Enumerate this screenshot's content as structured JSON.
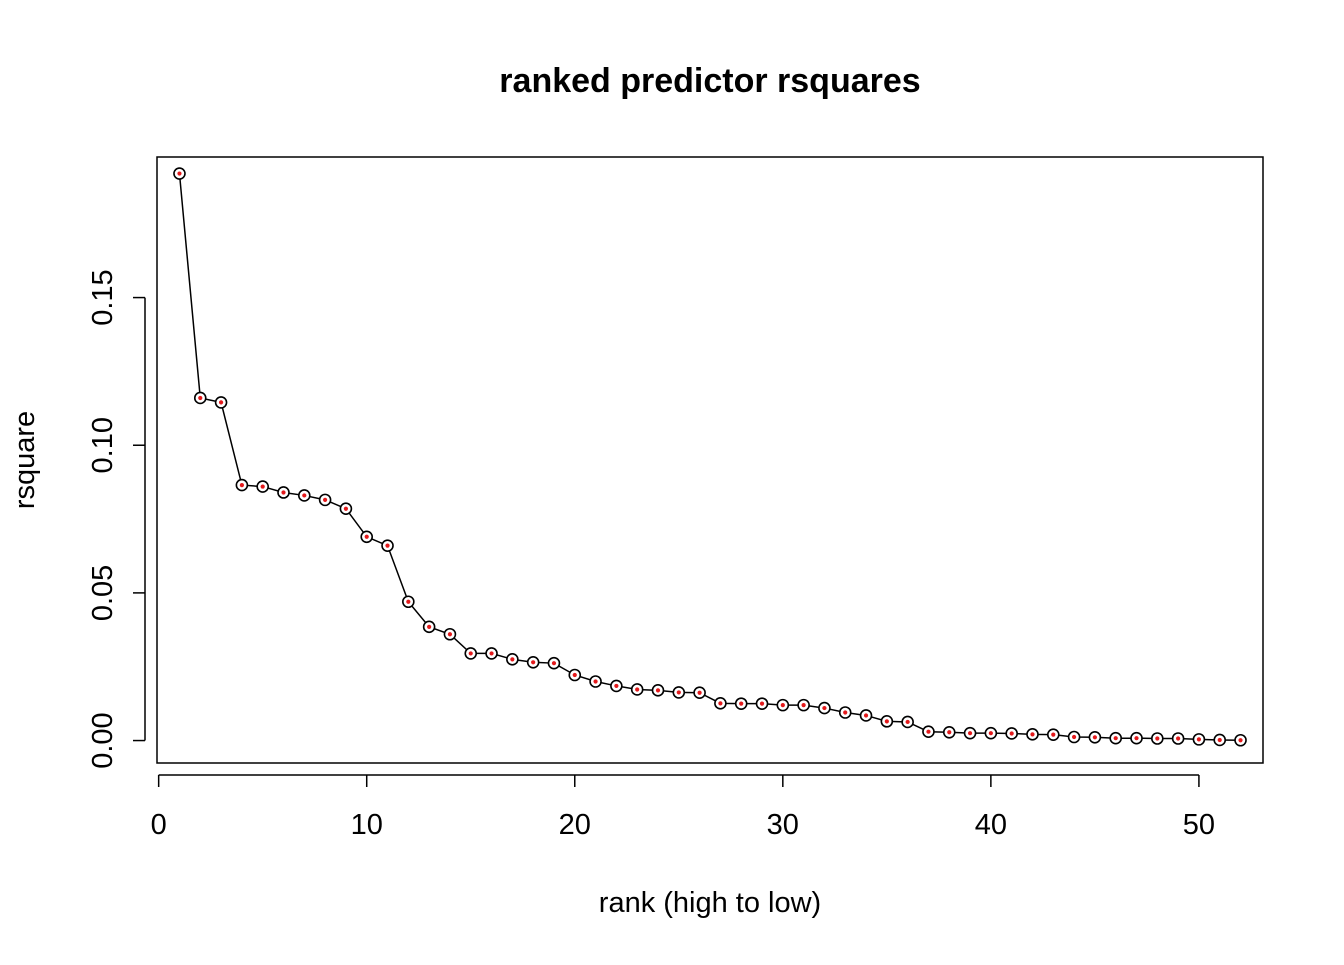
{
  "chart_data": {
    "type": "scatter",
    "title": "ranked predictor rsquares",
    "xlabel": "rank (high to low)",
    "ylabel": "rsquare",
    "xlim": [
      -0.08,
      53.08
    ],
    "ylim": [
      -0.0076,
      0.1976
    ],
    "x_ticks": [
      0,
      10,
      20,
      30,
      40,
      50
    ],
    "y_ticks": [
      0.0,
      0.05,
      0.1,
      0.15
    ],
    "x_tick_labels": [
      "0",
      "10",
      "20",
      "30",
      "40",
      "50"
    ],
    "y_tick_labels": [
      "0.00",
      "0.05",
      "0.10",
      "0.15"
    ],
    "grid": false,
    "lines_connected": true,
    "x": [
      1,
      2,
      3,
      4,
      5,
      6,
      7,
      8,
      9,
      10,
      11,
      12,
      13,
      14,
      15,
      16,
      17,
      18,
      19,
      20,
      21,
      22,
      23,
      24,
      25,
      26,
      27,
      28,
      29,
      30,
      31,
      32,
      33,
      34,
      35,
      36,
      37,
      38,
      39,
      40,
      41,
      42,
      43,
      44,
      45,
      46,
      47,
      48,
      49,
      50,
      51,
      52
    ],
    "y": [
      0.192,
      0.116,
      0.1145,
      0.0865,
      0.086,
      0.084,
      0.083,
      0.0815,
      0.0785,
      0.069,
      0.066,
      0.047,
      0.0385,
      0.036,
      0.0295,
      0.0295,
      0.0275,
      0.0265,
      0.0262,
      0.0222,
      0.02,
      0.0185,
      0.0173,
      0.017,
      0.0163,
      0.0162,
      0.0126,
      0.0125,
      0.0125,
      0.012,
      0.012,
      0.011,
      0.0095,
      0.0085,
      0.0065,
      0.0063,
      0.003,
      0.0028,
      0.0025,
      0.0025,
      0.0024,
      0.0021,
      0.002,
      0.0012,
      0.0011,
      0.0008,
      0.0008,
      0.0007,
      0.0007,
      0.0004,
      0.0002,
      0.0001
    ],
    "colors": {
      "line": "#000000",
      "point_outline": "#000000",
      "point_center": "#e41a1c",
      "frame": "#000000"
    }
  }
}
